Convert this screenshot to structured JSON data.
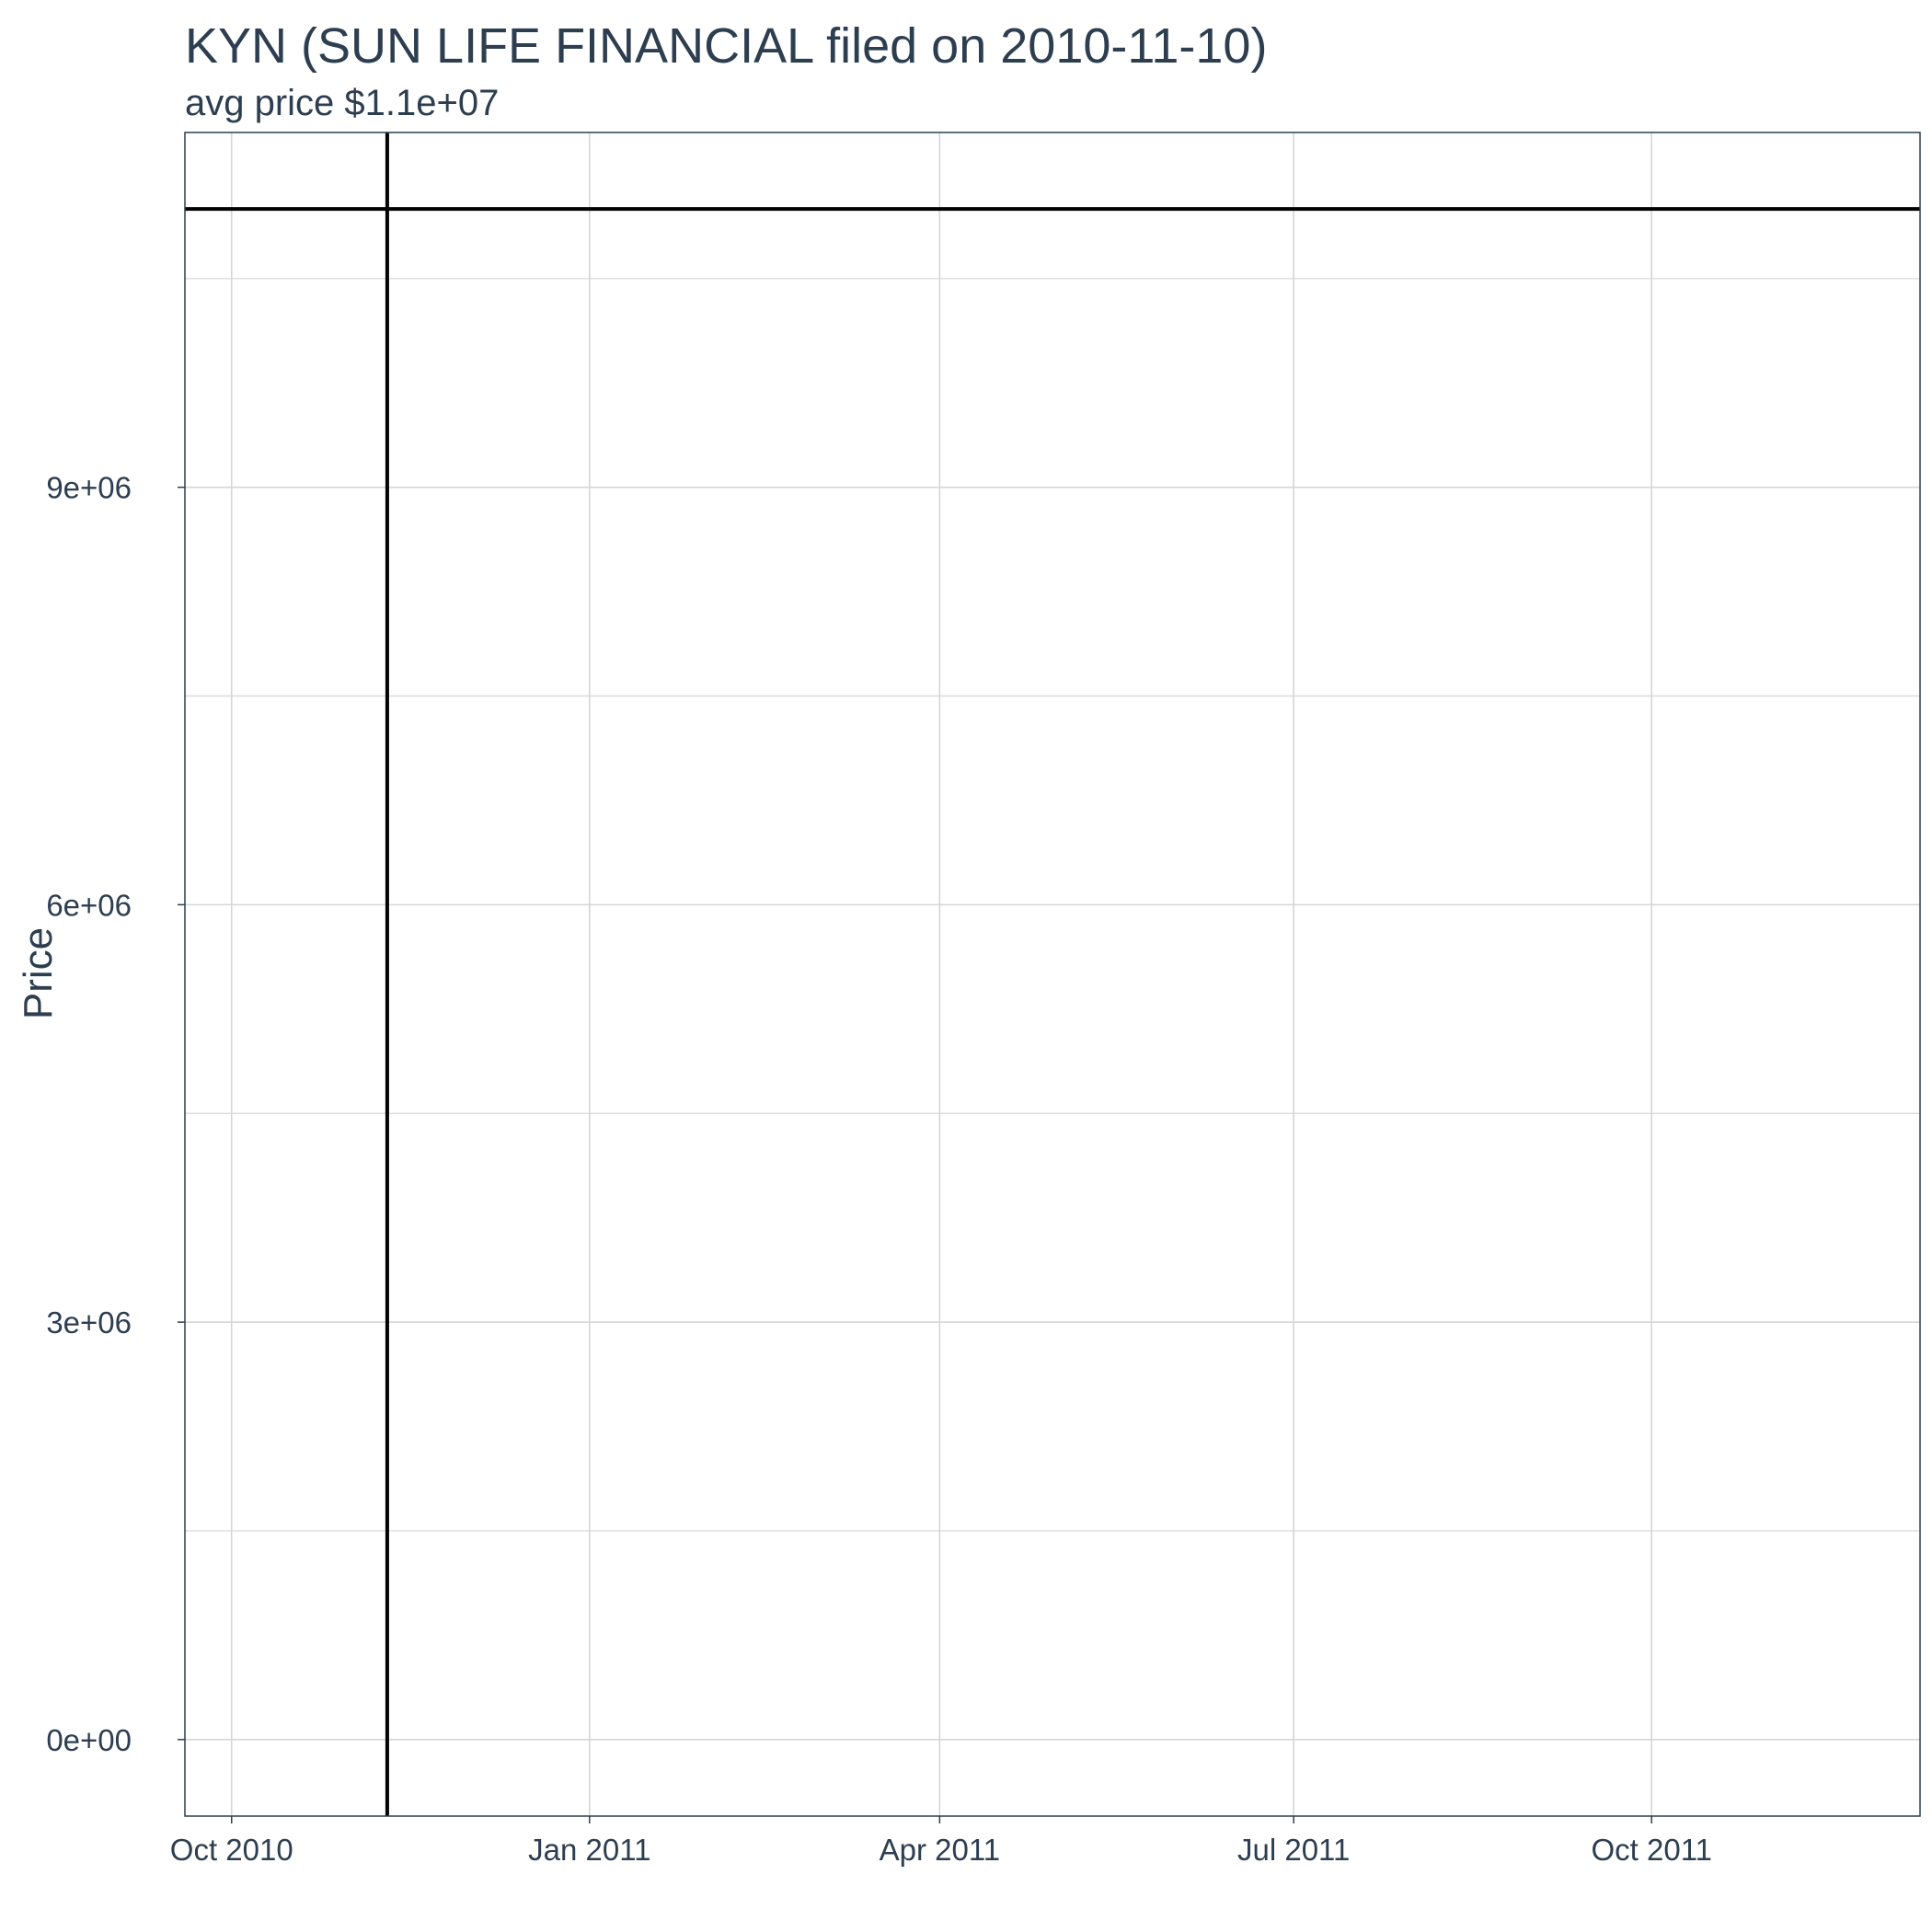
{
  "chart_data": {
    "type": "line",
    "title": "KYN (SUN LIFE FINANCIAL filed on 2010-11-10)",
    "subtitle": "avg price $1.1e+07",
    "xlabel": "",
    "ylabel": "Price",
    "x_type": "date",
    "xlim": [
      "2010-09-19",
      "2011-12-09"
    ],
    "ylim": [
      -550000,
      11550000
    ],
    "x_ticks": [
      {
        "date": "2010-10-01",
        "label": "Oct 2010"
      },
      {
        "date": "2011-01-01",
        "label": "Jan 2011"
      },
      {
        "date": "2011-04-01",
        "label": "Apr 2011"
      },
      {
        "date": "2011-07-01",
        "label": "Jul 2011"
      },
      {
        "date": "2011-10-01",
        "label": "Oct 2011"
      }
    ],
    "y_ticks": [
      {
        "value": 0,
        "label": "0e+00"
      },
      {
        "value": 3000000,
        "label": "3e+06"
      },
      {
        "value": 6000000,
        "label": "6e+06"
      },
      {
        "value": 9000000,
        "label": "9e+06"
      }
    ],
    "y_minor_gridlines": [
      1500000,
      4500000,
      7500000,
      10500000
    ],
    "x_minor_gridlines": [],
    "grid": true,
    "legend": "none",
    "reference_lines": [
      {
        "orientation": "horizontal",
        "value": 11000000,
        "color": "#000000"
      },
      {
        "orientation": "vertical",
        "date": "2010-11-10",
        "color": "#000000"
      }
    ],
    "colors": {
      "text": "#2d3e50",
      "grid": "#d6d6d6",
      "panel_border": "#2d3e50",
      "reference_line": "#000000"
    }
  }
}
